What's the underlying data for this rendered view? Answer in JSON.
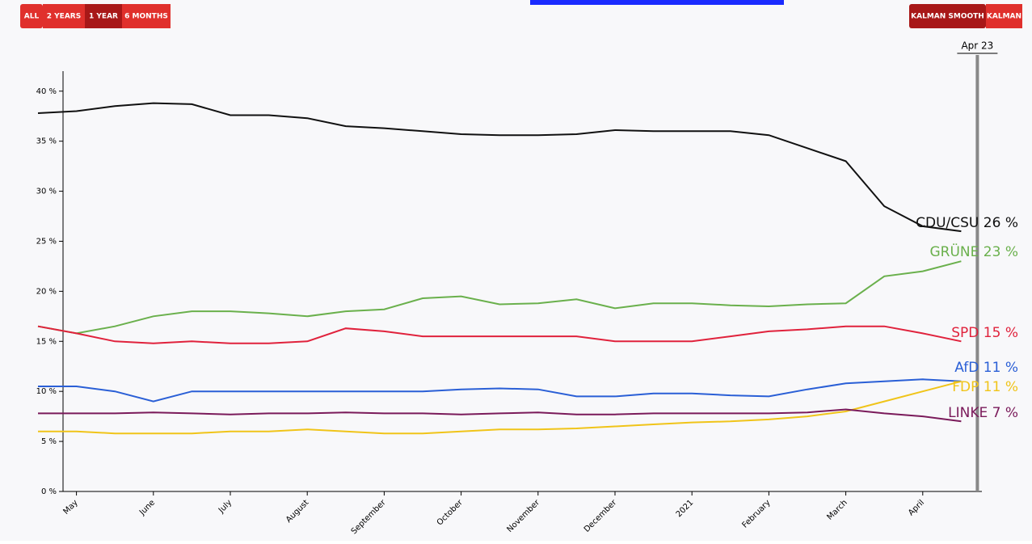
{
  "controls": {
    "range_buttons": [
      "ALL",
      "2 YEARS",
      "1 YEAR",
      "6 MONTHS"
    ],
    "active_range": 2,
    "smoothing_buttons": [
      "KALMAN SMOOTH",
      "KALMAN"
    ],
    "active_smoothing": 0
  },
  "chart_data": {
    "type": "line",
    "categories": [
      null,
      "May",
      null,
      "June",
      null,
      "July",
      null,
      "August",
      null,
      "September",
      null,
      "October",
      null,
      "November",
      null,
      "December",
      null,
      "2021",
      null,
      "February",
      null,
      "March",
      null,
      "April",
      null
    ],
    "marker_label": "Apr 23",
    "ylim": [
      0,
      42
    ],
    "yticks": [
      {
        "value": 0,
        "label": "0 %"
      },
      {
        "value": 5,
        "label": "5 %"
      },
      {
        "value": 10,
        "label": "10 %"
      },
      {
        "value": 15,
        "label": "15 %"
      },
      {
        "value": 20,
        "label": "20 %"
      },
      {
        "value": 25,
        "label": "25 %"
      },
      {
        "value": 30,
        "label": "30 %"
      },
      {
        "value": 35,
        "label": "35 %"
      },
      {
        "value": 40,
        "label": "40 %"
      }
    ],
    "series": [
      {
        "name": "CDU/CSU",
        "color": "#111111",
        "end_label": "26 %",
        "values": [
          37.8,
          38,
          38.5,
          38.8,
          38.7,
          37.6,
          37.6,
          37.3,
          36.5,
          36.3,
          36,
          35.7,
          35.6,
          35.6,
          35.7,
          36.1,
          36,
          36,
          36,
          35.6,
          34.3,
          33,
          28.5,
          26.5,
          26
        ]
      },
      {
        "name": "GRÜNE",
        "color": "#6ab04c",
        "end_label": "23 %",
        "values": [
          16.5,
          15.8,
          16.5,
          17.5,
          18,
          18,
          17.8,
          17.5,
          18,
          18.2,
          19.3,
          19.5,
          18.7,
          18.8,
          19.2,
          18.3,
          18.8,
          18.8,
          18.6,
          18.5,
          18.7,
          18.8,
          21.5,
          22,
          23
        ]
      },
      {
        "name": "SPD",
        "color": "#e0223c",
        "end_label": "15 %",
        "values": [
          16.5,
          15.8,
          15,
          14.8,
          15,
          14.8,
          14.8,
          15,
          16.3,
          16,
          15.5,
          15.5,
          15.5,
          15.5,
          15.5,
          15,
          15,
          15,
          15.5,
          16,
          16.2,
          16.5,
          16.5,
          15.8,
          15
        ]
      },
      {
        "name": "AfD",
        "color": "#2a5fd6",
        "end_label": "11 %",
        "values": [
          10.5,
          10.5,
          10,
          9,
          10,
          10,
          10,
          10,
          10,
          10,
          10,
          10.2,
          10.3,
          10.2,
          9.5,
          9.5,
          9.8,
          9.8,
          9.6,
          9.5,
          10.2,
          10.8,
          11,
          11.2,
          11
        ]
      },
      {
        "name": "FDP",
        "color": "#f0c419",
        "end_label": "11 %",
        "values": [
          6,
          6,
          5.8,
          5.8,
          5.8,
          6,
          6,
          6.2,
          6,
          5.8,
          5.8,
          6,
          6.2,
          6.2,
          6.3,
          6.5,
          6.7,
          6.9,
          7,
          7.2,
          7.5,
          8,
          9,
          10,
          11
        ]
      },
      {
        "name": "LINKE",
        "color": "#7a1a5a",
        "end_label": "7 %",
        "values": [
          7.8,
          7.8,
          7.8,
          7.9,
          7.8,
          7.7,
          7.8,
          7.8,
          7.9,
          7.8,
          7.8,
          7.7,
          7.8,
          7.9,
          7.7,
          7.7,
          7.8,
          7.8,
          7.8,
          7.8,
          7.9,
          8.2,
          7.8,
          7.5,
          7
        ]
      }
    ]
  }
}
